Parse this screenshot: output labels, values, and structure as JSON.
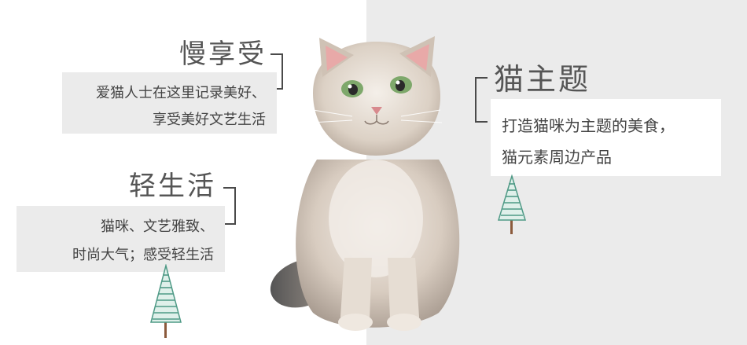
{
  "left_top": {
    "title": "慢享受",
    "line1": "爱猫人士在这里记录美好、",
    "line2": "享受美好文艺生活"
  },
  "left_bottom": {
    "title": "轻生活",
    "line1": "猫咪、文艺雅致、",
    "line2": "时尚大气；感受轻生活"
  },
  "right": {
    "title": "猫主题",
    "line1": "打造猫咪为主题的美食，",
    "line2": "猫元素周边产品"
  },
  "colors": {
    "panel_gray": "#ebebeb",
    "text_dark": "#4a4a4a",
    "tree_green": "#4f9a86",
    "tree_trunk": "#8b5a3c",
    "cat_fur": "#d8ccc0"
  },
  "icons": [
    "pine-tree-icon",
    "pine-tree-icon",
    "cat-photo"
  ]
}
